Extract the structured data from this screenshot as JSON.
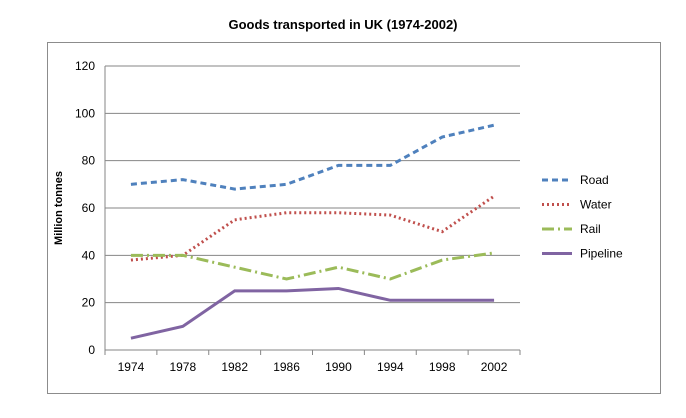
{
  "chart_data": {
    "type": "line",
    "title": "Goods transported in  UK (1974-2002)",
    "xlabel": "",
    "ylabel": "Million tonnes",
    "ylim": [
      0,
      120
    ],
    "yticks": [
      0,
      20,
      40,
      60,
      80,
      100,
      120
    ],
    "categories": [
      "1974",
      "1978",
      "1982",
      "1986",
      "1990",
      "1994",
      "1998",
      "2002"
    ],
    "grid": true,
    "legend_position": "right",
    "series": [
      {
        "name": "Road",
        "values": [
          70,
          72,
          68,
          70,
          78,
          78,
          90,
          95
        ],
        "color": "#4f81bd",
        "dash": "6,4"
      },
      {
        "name": "Water",
        "values": [
          38,
          40,
          55,
          58,
          58,
          57,
          50,
          65
        ],
        "color": "#c0504d",
        "dash": "2,3"
      },
      {
        "name": "Rail",
        "values": [
          40,
          40,
          35,
          30,
          35,
          30,
          38,
          41
        ],
        "color": "#9bbb59",
        "dash": "12,4,2,4"
      },
      {
        "name": "Pipeline",
        "values": [
          5,
          10,
          25,
          25,
          26,
          21,
          21,
          21
        ],
        "color": "#8064a2",
        "dash": ""
      }
    ]
  }
}
